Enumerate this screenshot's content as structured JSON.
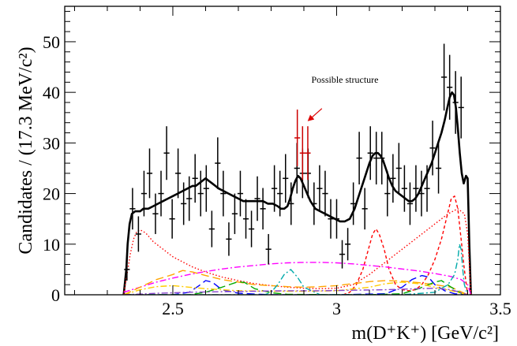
{
  "chart_data": {
    "type": "scatter",
    "title": "",
    "xlabel": "m(D⁺K⁺) [GeV/c²]",
    "ylabel": "Candidates / (17.3 MeV/c²)",
    "xlim": [
      2.17,
      3.5
    ],
    "ylim": [
      0,
      57
    ],
    "x_ticks": [
      2.5,
      3,
      3.5
    ],
    "y_ticks": [
      0,
      10,
      20,
      30,
      40,
      50
    ],
    "bin_half_width": 0.00865,
    "data_points": {
      "x": [
        2.36,
        2.377,
        2.395,
        2.412,
        2.429,
        2.447,
        2.464,
        2.481,
        2.498,
        2.516,
        2.533,
        2.55,
        2.568,
        2.585,
        2.602,
        2.619,
        2.637,
        2.654,
        2.671,
        2.689,
        2.706,
        2.723,
        2.74,
        2.758,
        2.775,
        2.792,
        2.81,
        2.827,
        2.844,
        2.861,
        2.879,
        2.896,
        2.913,
        2.931,
        2.948,
        2.965,
        2.982,
        3.0,
        3.017,
        3.034,
        3.051,
        3.069,
        3.086,
        3.103,
        3.121,
        3.138,
        3.155,
        3.172,
        3.19,
        3.207,
        3.224,
        3.242,
        3.259,
        3.276,
        3.293,
        3.311,
        3.328,
        3.345,
        3.363,
        3.38
      ],
      "y": [
        5,
        17,
        12,
        20,
        24,
        16,
        20,
        28,
        15,
        24,
        18,
        19,
        23,
        20,
        21,
        13,
        26,
        20,
        11,
        16,
        20,
        15,
        13,
        19,
        17,
        9,
        21,
        20,
        23,
        18,
        25,
        24,
        24,
        18,
        21,
        20,
        15,
        15,
        8,
        10,
        18,
        27,
        17,
        28,
        27,
        27,
        20,
        23,
        25,
        21,
        18,
        21,
        20,
        21,
        29,
        25,
        43,
        41,
        38,
        37
      ],
      "err": [
        2.2,
        4.1,
        3.5,
        4.5,
        4.9,
        4.0,
        4.5,
        5.3,
        3.9,
        4.9,
        4.2,
        4.4,
        4.8,
        4.5,
        4.6,
        3.6,
        5.1,
        4.5,
        3.3,
        4.0,
        4.5,
        3.9,
        3.6,
        4.4,
        4.1,
        3.0,
        4.6,
        4.5,
        4.8,
        4.2,
        5.0,
        4.9,
        4.9,
        4.2,
        4.6,
        4.5,
        3.9,
        3.9,
        2.8,
        3.2,
        4.2,
        5.2,
        4.1,
        5.3,
        5.2,
        5.2,
        4.5,
        4.8,
        5.0,
        4.6,
        4.2,
        4.6,
        4.5,
        4.6,
        5.4,
        5.0,
        6.6,
        6.4,
        6.2,
        6.1
      ]
    },
    "highlighted_points": {
      "x": [
        2.88,
        2.896,
        2.912
      ],
      "y": [
        31,
        28,
        28
      ],
      "err": [
        5.6,
        5.3,
        5.3
      ],
      "color": "#cc0000"
    },
    "annotation": {
      "text": "Possible structure",
      "arrow_from": [
        2.955,
        36.8
      ],
      "arrow_to": [
        2.915,
        34.5
      ]
    },
    "series": [
      {
        "style": "total-fit",
        "color": "#000000",
        "x": [
          2.35,
          2.358,
          2.362,
          2.368,
          2.375,
          2.385,
          2.4,
          2.41,
          2.425,
          2.44,
          2.455,
          2.47,
          2.485,
          2.5,
          2.515,
          2.53,
          2.545,
          2.56,
          2.57,
          2.58,
          2.59,
          2.6,
          2.61,
          2.62,
          2.63,
          2.64,
          2.655,
          2.67,
          2.685,
          2.7,
          2.715,
          2.73,
          2.745,
          2.76,
          2.775,
          2.79,
          2.805,
          2.82,
          2.83,
          2.84,
          2.85,
          2.858,
          2.866,
          2.874,
          2.882,
          2.89,
          2.9,
          2.91,
          2.92,
          2.935,
          2.95,
          2.965,
          2.98,
          2.995,
          3.01,
          3.025,
          3.04,
          3.055,
          3.07,
          3.085,
          3.1,
          3.11,
          3.118,
          3.126,
          3.134,
          3.142,
          3.15,
          3.16,
          3.17,
          3.18,
          3.19,
          3.2,
          3.21,
          3.22,
          3.23,
          3.24,
          3.25,
          3.26,
          3.27,
          3.28,
          3.29,
          3.3,
          3.31,
          3.32,
          3.33,
          3.338,
          3.345,
          3.352,
          3.358,
          3.364,
          3.37,
          3.376,
          3.382,
          3.388,
          3.395,
          3.4,
          3.405,
          3.41
        ],
        "y": [
          0,
          5,
          10,
          14,
          16,
          16.5,
          16.5,
          17,
          17,
          17.5,
          18,
          18.5,
          19,
          19.5,
          20,
          20.5,
          21,
          21.5,
          21.5,
          22,
          22.5,
          23,
          22.5,
          22,
          21.5,
          21,
          20.5,
          20,
          19.5,
          19,
          18.5,
          18.5,
          18.5,
          18.5,
          18.5,
          18,
          18,
          17.5,
          17,
          17,
          17.5,
          19,
          21,
          22.5,
          23.5,
          23,
          21.5,
          20,
          18.5,
          17,
          16.5,
          16,
          15.5,
          15,
          14.5,
          14.5,
          15,
          17,
          20,
          23,
          26,
          27.5,
          28,
          28,
          27.5,
          26.5,
          25,
          23,
          21.5,
          20.5,
          20,
          19.5,
          19,
          18.5,
          18.5,
          19,
          20,
          21.5,
          23,
          24.5,
          26,
          28,
          30,
          32,
          34.5,
          37,
          39,
          40,
          39.5,
          37,
          33,
          28,
          24,
          22,
          23.5,
          23,
          10,
          0
        ]
      },
      {
        "style": "dotted",
        "color": "#ff0000",
        "x": [
          2.35,
          2.36,
          2.37,
          2.38,
          2.39,
          2.4,
          2.41,
          2.42,
          2.44,
          2.46,
          2.48,
          2.5,
          2.53,
          2.56,
          2.6,
          2.65,
          2.7,
          2.75,
          2.8,
          2.85,
          2.9,
          2.95,
          3.0,
          3.05,
          3.1,
          3.15,
          3.2,
          3.25,
          3.3,
          3.34,
          3.37,
          3.39,
          3.4,
          3.41
        ],
        "y": [
          0,
          4,
          8,
          11,
          12.5,
          12.8,
          12.5,
          12,
          10.5,
          9.5,
          8.5,
          7.5,
          6.5,
          5.5,
          4.5,
          3.5,
          2.8,
          2.2,
          1.8,
          1.5,
          1.3,
          1.2,
          1.3,
          2,
          4,
          6.5,
          9,
          11.5,
          14,
          16,
          17,
          16,
          12,
          0
        ]
      },
      {
        "style": "short-dashed",
        "color": "#ff0000",
        "x": [
          3.02,
          3.04,
          3.06,
          3.08,
          3.095,
          3.11,
          3.12,
          3.13,
          3.145,
          3.16,
          3.18,
          3.2,
          3.22,
          3.24,
          3.26,
          3.28,
          3.3,
          3.32,
          3.335,
          3.35,
          3.36,
          3.37,
          3.38,
          3.39,
          3.4
        ],
        "y": [
          0,
          0.5,
          2,
          5,
          8.5,
          12,
          13,
          12,
          9,
          5,
          2,
          1,
          0.8,
          1,
          2,
          4,
          7,
          11,
          15,
          19,
          19.5,
          17,
          11,
          5,
          0
        ]
      },
      {
        "style": "dash-dot",
        "color": "#ff00ff",
        "x": [
          2.35,
          2.4,
          2.45,
          2.5,
          2.55,
          2.6,
          2.65,
          2.7,
          2.75,
          2.8,
          2.85,
          2.9,
          2.95,
          3.0,
          3.05,
          3.1,
          3.15,
          3.2,
          3.25,
          3.3,
          3.35,
          3.38,
          3.4,
          3.41
        ],
        "y": [
          0.5,
          1.5,
          2.5,
          3.3,
          4,
          4.6,
          5.1,
          5.5,
          5.8,
          6.1,
          6.3,
          6.4,
          6.4,
          6.3,
          6.1,
          5.8,
          5.5,
          5.1,
          4.7,
          4.2,
          3.6,
          3,
          2,
          0
        ]
      },
      {
        "style": "long-dashed",
        "color": "#ffa500",
        "x": [
          2.35,
          2.4,
          2.45,
          2.5,
          2.53,
          2.56,
          2.6,
          2.65,
          2.7,
          2.75,
          2.8,
          2.85,
          2.9,
          2.95,
          3.0,
          3.05,
          3.1,
          3.15,
          3.2,
          3.25,
          3.3,
          3.35,
          3.4
        ],
        "y": [
          0,
          1.5,
          3,
          4,
          4.8,
          4.5,
          3.8,
          3,
          2.5,
          2,
          1.8,
          1.6,
          1.5,
          1.6,
          1.8,
          2.2,
          2.6,
          2.8,
          2.7,
          2.4,
          2,
          1.5,
          0
        ]
      },
      {
        "style": "long-dashed",
        "color": "#0000ff",
        "x": [
          2.35,
          2.5,
          2.55,
          2.58,
          2.6,
          2.62,
          2.65,
          2.7,
          2.8,
          3.0,
          3.15,
          3.2,
          3.23,
          3.26,
          3.28,
          3.3,
          3.33,
          3.36,
          3.4
        ],
        "y": [
          0,
          0,
          0.5,
          1.8,
          2.8,
          2.5,
          1,
          0.3,
          0,
          0,
          0.2,
          1.5,
          3,
          3.8,
          3.5,
          2,
          0.8,
          0.2,
          0
        ]
      },
      {
        "style": "long-dashed",
        "color": "#00aa00",
        "x": [
          2.35,
          2.55,
          2.6,
          2.65,
          2.7,
          2.72,
          2.75,
          2.8,
          2.85,
          3.0,
          3.1,
          3.2,
          3.25,
          3.3,
          3.32,
          3.35,
          3.38,
          3.4
        ],
        "y": [
          0,
          0,
          0.5,
          1.5,
          2.6,
          2.4,
          1.2,
          0.4,
          0.1,
          0,
          0,
          0.2,
          1.2,
          2.5,
          2.8,
          1.5,
          0.3,
          0
        ]
      },
      {
        "style": "dash-dot",
        "color": "#00aaaa",
        "x": [
          2.35,
          2.78,
          2.8,
          2.82,
          2.84,
          2.86,
          2.88,
          2.9,
          2.95,
          3.2,
          3.3,
          3.34,
          3.36,
          3.37,
          3.375,
          3.38,
          3.385,
          3.39,
          3.4
        ],
        "y": [
          0,
          0,
          0.5,
          2,
          4,
          5,
          3.5,
          1.5,
          0,
          0,
          0.5,
          2,
          4,
          7,
          10,
          9,
          5,
          2,
          0
        ]
      },
      {
        "style": "dash-dot",
        "color": "#ffcc00",
        "x": [
          2.35,
          2.4,
          2.45,
          2.5,
          2.55,
          2.6,
          2.65,
          2.7,
          2.8,
          2.9,
          3.0,
          3.1,
          3.15,
          3.2,
          3.25,
          3.3,
          3.35,
          3.4
        ],
        "y": [
          0,
          1,
          1.6,
          1.8,
          1.5,
          1.2,
          1,
          0.8,
          0.7,
          0.7,
          0.8,
          1.5,
          2.2,
          2.5,
          2.2,
          1.5,
          0.8,
          0
        ]
      },
      {
        "style": "dash-dot",
        "color": "#8844cc",
        "x": [
          2.35,
          2.45,
          2.55,
          2.65,
          2.75,
          2.85,
          2.95,
          3.05,
          3.15,
          3.25,
          3.3,
          3.35,
          3.4
        ],
        "y": [
          0,
          0.3,
          0.5,
          0.6,
          0.7,
          0.8,
          0.8,
          0.9,
          1,
          1.2,
          1.3,
          1,
          0
        ]
      }
    ]
  }
}
